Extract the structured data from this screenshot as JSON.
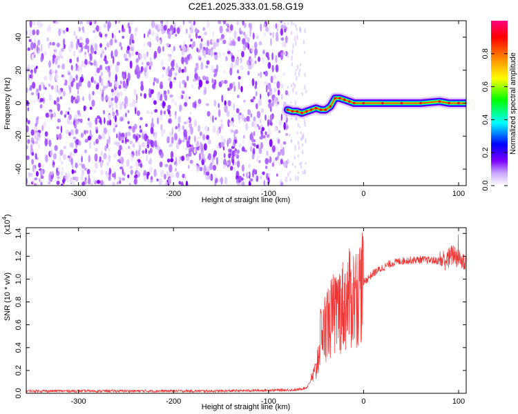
{
  "title": "C2E1.2025.333.01.58.G19",
  "chart_data": [
    {
      "type": "heatmap",
      "xlabel": "Height of straight line (km)",
      "ylabel": "Frequency (Hz)",
      "xlim": [
        -355,
        108
      ],
      "ylim": [
        -50,
        50
      ],
      "x_ticks": [
        -300,
        -200,
        -100,
        0,
        100
      ],
      "y_ticks": [
        -40,
        -20,
        0,
        20,
        40
      ],
      "x_tick_labels": [
        "-300",
        "-200",
        "-100",
        "0",
        "100"
      ],
      "y_tick_labels": [
        "-40",
        "-20",
        "0",
        "20",
        "40"
      ],
      "noise_region_x": [
        -355,
        -80
      ],
      "sparse_region_x": [
        -80,
        -60
      ],
      "signal_trace": [
        {
          "x": -80,
          "y": -4
        },
        {
          "x": -75,
          "y": -5
        },
        {
          "x": -70,
          "y": -5
        },
        {
          "x": -65,
          "y": -6
        },
        {
          "x": -60,
          "y": -5
        },
        {
          "x": -55,
          "y": -4
        },
        {
          "x": -50,
          "y": -3
        },
        {
          "x": -45,
          "y": -4
        },
        {
          "x": -40,
          "y": -4
        },
        {
          "x": -35,
          "y": -2
        },
        {
          "x": -30,
          "y": 3
        },
        {
          "x": -25,
          "y": 3
        },
        {
          "x": -20,
          "y": 2
        },
        {
          "x": -15,
          "y": 1
        },
        {
          "x": -10,
          "y": 0
        },
        {
          "x": 0,
          "y": 0
        },
        {
          "x": 20,
          "y": 0
        },
        {
          "x": 40,
          "y": 0
        },
        {
          "x": 60,
          "y": 0
        },
        {
          "x": 80,
          "y": 1
        },
        {
          "x": 90,
          "y": 0
        },
        {
          "x": 100,
          "y": 0
        },
        {
          "x": 108,
          "y": 0
        }
      ],
      "colorbar": {
        "label": "Normalized spectral amplitude",
        "range": [
          0,
          1
        ],
        "ticks": [
          0,
          0.2,
          0.4,
          0.6,
          0.8
        ],
        "tick_labels": [
          "0.0",
          "0.2",
          "0.4",
          "0.6",
          "0.8"
        ],
        "colors": [
          "#ffffff",
          "#7b00ff",
          "#0000ff",
          "#00ffff",
          "#00ff00",
          "#ffff00",
          "#ff8000",
          "#ff0000",
          "#ff0080"
        ]
      }
    },
    {
      "type": "line",
      "xlabel": "Height of straight line (km)",
      "ylabel": "SNR (10 * v/v)",
      "scale_label": "(x10",
      "scale_exponent": "4",
      "scale_label_close": ")",
      "xlim": [
        -355,
        108
      ],
      "ylim": [
        0,
        1.45
      ],
      "x_ticks": [
        -300,
        -200,
        -100,
        0,
        100
      ],
      "y_ticks": [
        0,
        0.2,
        0.4,
        0.6,
        0.8,
        1.0,
        1.2,
        1.4
      ],
      "x_tick_labels": [
        "-300",
        "-200",
        "-100",
        "0",
        "100"
      ],
      "y_tick_labels": [
        "0.0",
        "0.2",
        "0.4",
        "0.6",
        "0.8",
        "1.0",
        "1.2",
        "1.4"
      ],
      "color": "#ee3333",
      "envelope": [
        {
          "x": -355,
          "y": 0.02
        },
        {
          "x": -150,
          "y": 0.02
        },
        {
          "x": -70,
          "y": 0.03
        },
        {
          "x": -60,
          "y": 0.05
        },
        {
          "x": -55,
          "y": 0.12
        },
        {
          "x": -50,
          "y": 0.2
        },
        {
          "x": -45,
          "y": 0.5
        },
        {
          "x": -40,
          "y": 0.6
        },
        {
          "x": -35,
          "y": 0.65
        },
        {
          "x": -30,
          "y": 0.7
        },
        {
          "x": -25,
          "y": 0.75
        },
        {
          "x": -20,
          "y": 0.78
        },
        {
          "x": -15,
          "y": 0.82
        },
        {
          "x": -10,
          "y": 0.85
        },
        {
          "x": -5,
          "y": 0.9
        },
        {
          "x": 0,
          "y": 0.97
        },
        {
          "x": 10,
          "y": 1.05
        },
        {
          "x": 20,
          "y": 1.1
        },
        {
          "x": 30,
          "y": 1.14
        },
        {
          "x": 40,
          "y": 1.16
        },
        {
          "x": 60,
          "y": 1.17
        },
        {
          "x": 80,
          "y": 1.16
        },
        {
          "x": 90,
          "y": 1.18
        },
        {
          "x": 95,
          "y": 1.22
        },
        {
          "x": 100,
          "y": 1.18
        },
        {
          "x": 108,
          "y": 1.14
        }
      ]
    }
  ]
}
